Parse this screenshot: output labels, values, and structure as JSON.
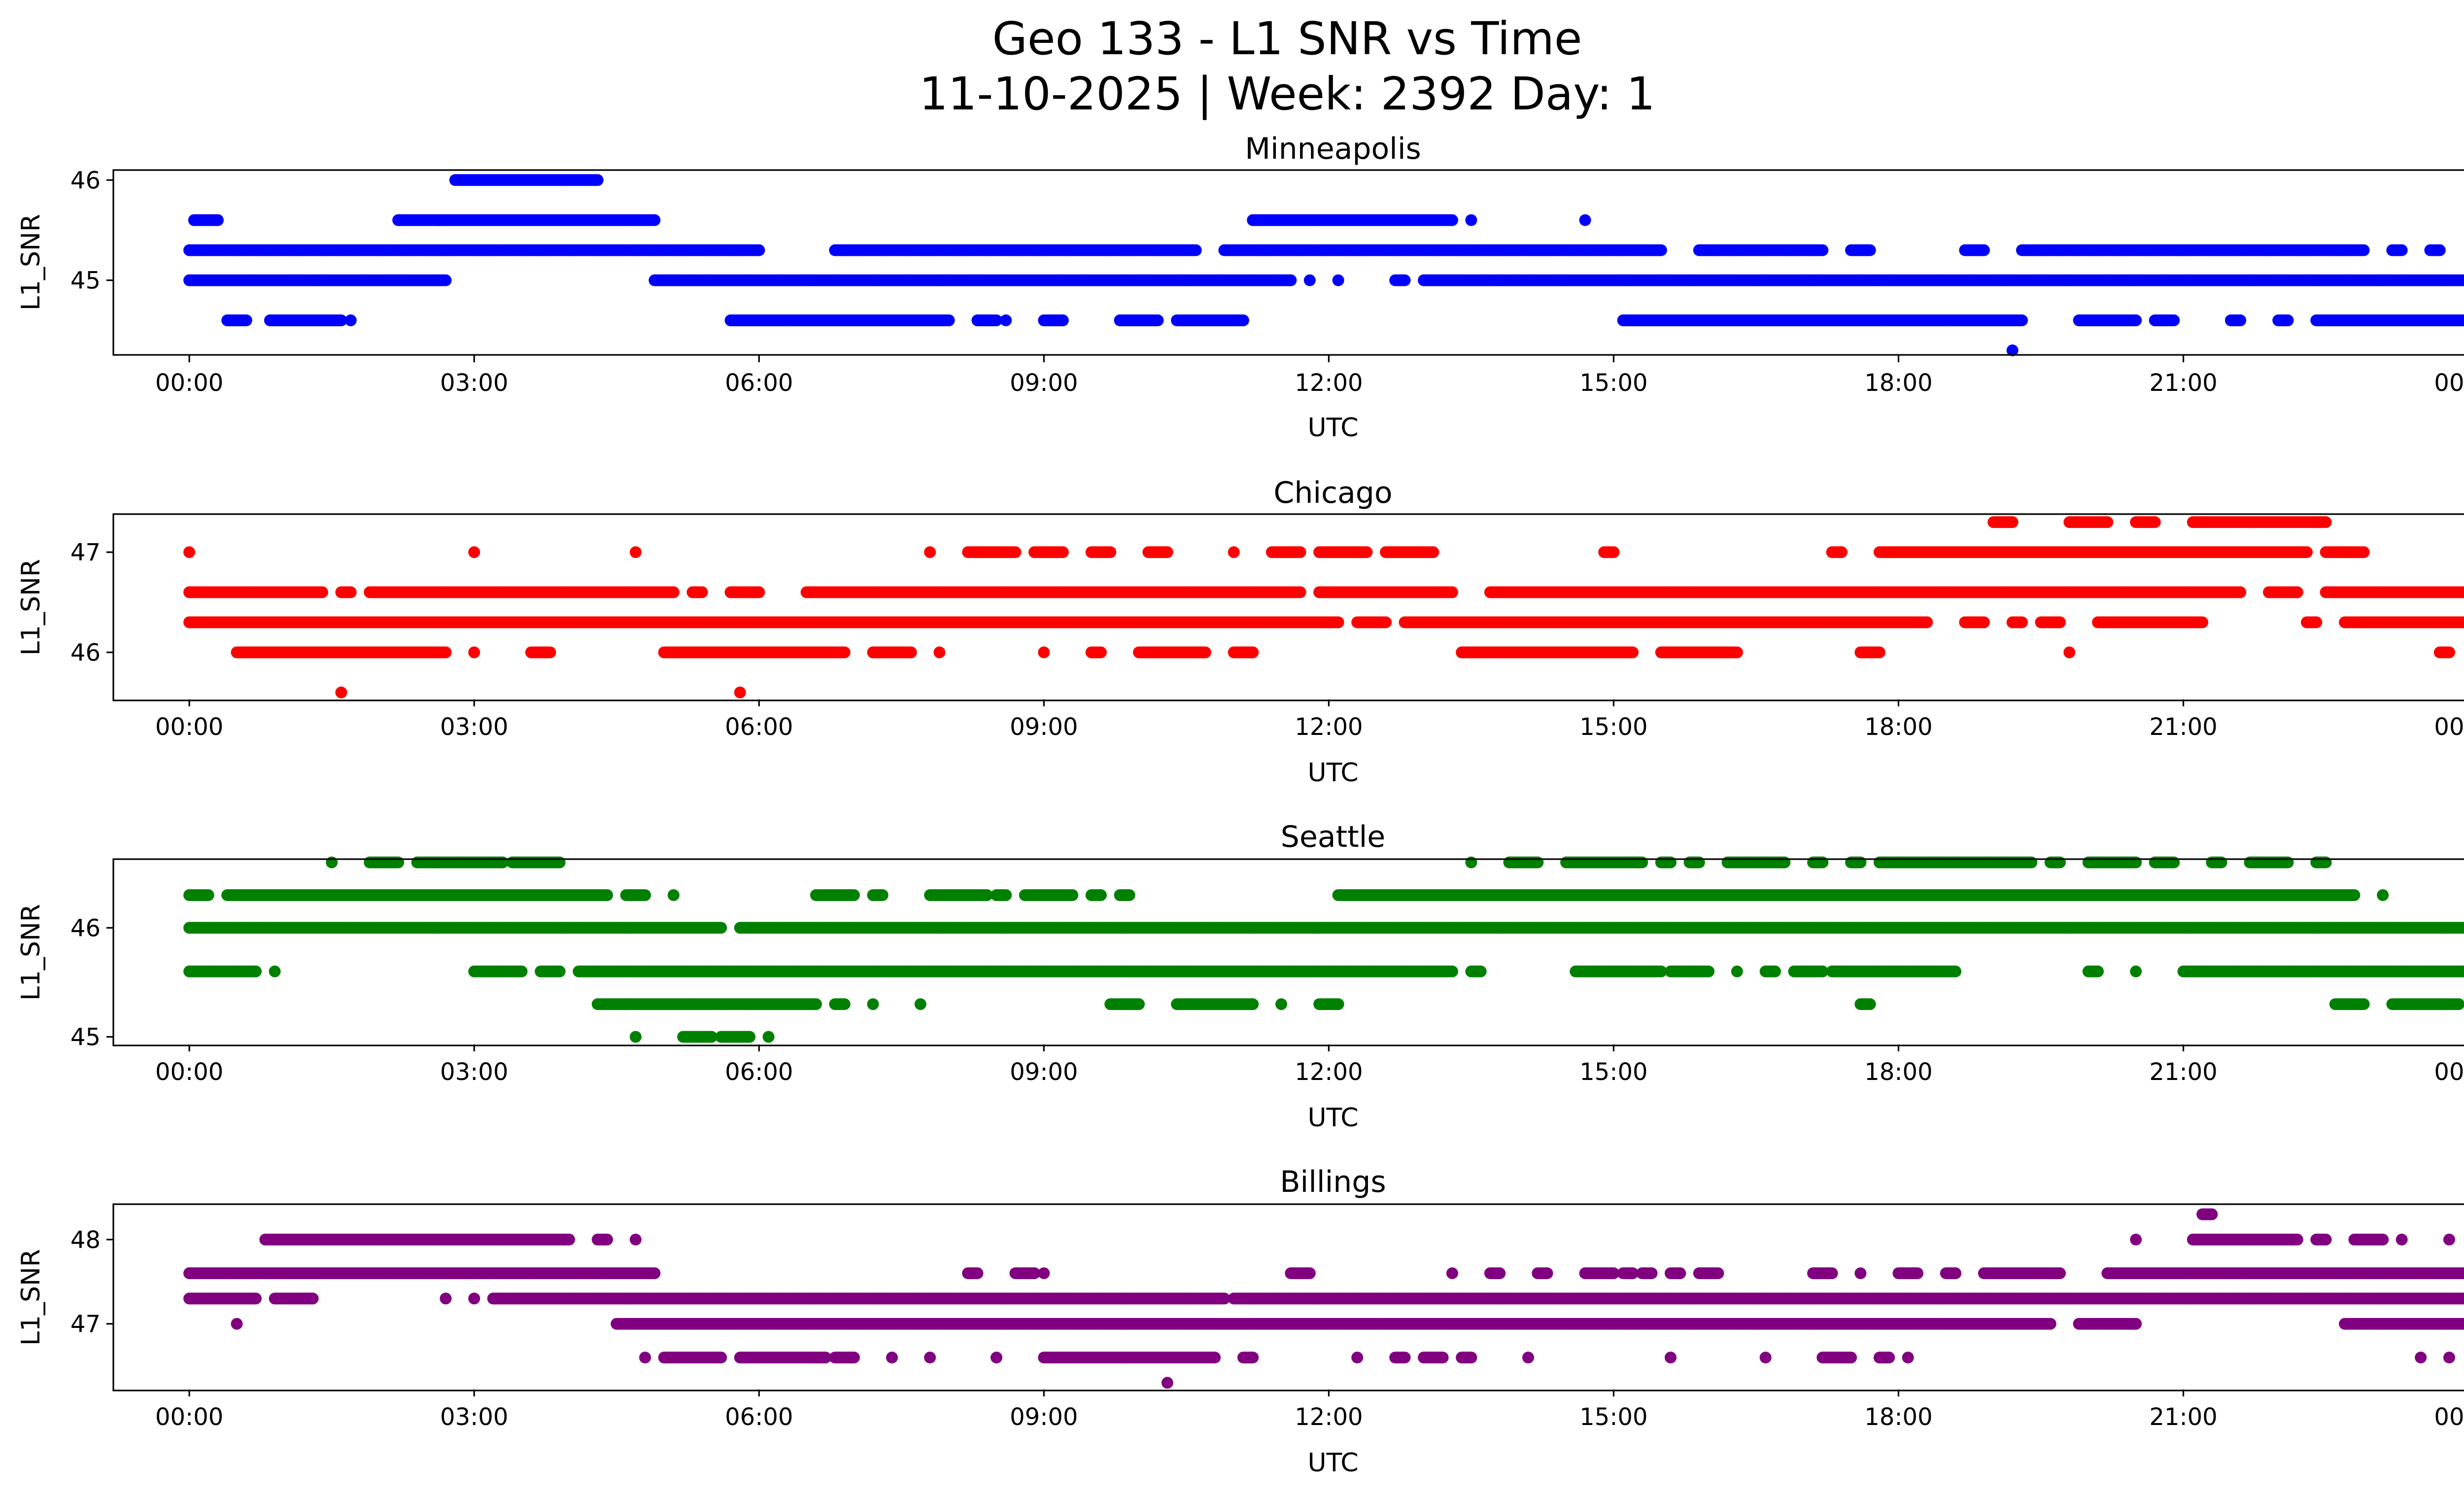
{
  "figure": {
    "title_line1": "Geo 133 - L1 SNR vs Time",
    "title_line2": "11-10-2025 | Week: 2392 Day: 1"
  },
  "chart_data": [
    {
      "type": "scatter",
      "title": "Minneapolis",
      "xlabel": "UTC",
      "ylabel": "L1_SNR",
      "color": "#0000ff",
      "xlim": [
        -0.8,
        24.9
      ],
      "ylim": [
        44.25,
        46.1
      ],
      "xticks": [
        0,
        3,
        6,
        9,
        12,
        15,
        18,
        21,
        24
      ],
      "xtick_labels": [
        "00:00",
        "03:00",
        "06:00",
        "09:00",
        "12:00",
        "15:00",
        "18:00",
        "21:00",
        "00:00"
      ],
      "yticks": [
        45,
        46
      ],
      "ytick_labels": [
        "45",
        "46"
      ],
      "level_runs": [
        {
          "y": 46.0,
          "runs": [
            [
              2.8,
              4.3
            ]
          ]
        },
        {
          "y": 45.6,
          "runs": [
            [
              0.05,
              0.3
            ],
            [
              2.2,
              4.9
            ],
            [
              11.2,
              13.3
            ],
            [
              13.5,
              13.5
            ],
            [
              14.7,
              14.7
            ]
          ]
        },
        {
          "y": 45.3,
          "runs": [
            [
              0.0,
              6.0
            ],
            [
              6.8,
              10.6
            ],
            [
              10.9,
              15.5
            ],
            [
              15.9,
              17.2
            ],
            [
              17.5,
              17.7
            ],
            [
              18.7,
              18.9
            ],
            [
              19.3,
              22.9
            ],
            [
              23.2,
              23.3
            ],
            [
              23.6,
              23.7
            ]
          ]
        },
        {
          "y": 45.0,
          "runs": [
            [
              0.0,
              2.7
            ],
            [
              4.9,
              11.6
            ],
            [
              11.8,
              11.8
            ],
            [
              12.1,
              12.1
            ],
            [
              12.7,
              12.8
            ],
            [
              13.0,
              24.0
            ]
          ]
        },
        {
          "y": 44.6,
          "runs": [
            [
              0.4,
              0.6
            ],
            [
              0.85,
              1.6
            ],
            [
              1.7,
              1.7
            ],
            [
              5.7,
              8.0
            ],
            [
              8.3,
              8.5
            ],
            [
              8.6,
              8.6
            ],
            [
              9.0,
              9.2
            ],
            [
              9.8,
              10.2
            ],
            [
              10.4,
              11.1
            ],
            [
              15.1,
              19.3
            ],
            [
              19.9,
              20.5
            ],
            [
              20.7,
              20.9
            ],
            [
              21.5,
              21.6
            ],
            [
              22.0,
              22.1
            ],
            [
              22.4,
              24.0
            ]
          ]
        },
        {
          "y": 44.3,
          "runs": [
            [
              19.2,
              19.2
            ]
          ]
        }
      ]
    },
    {
      "type": "scatter",
      "title": "Chicago",
      "xlabel": "UTC",
      "ylabel": "L1_SNR",
      "color": "#ff0000",
      "xlim": [
        -0.8,
        24.9
      ],
      "ylim": [
        45.53,
        47.38
      ],
      "xticks": [
        0,
        3,
        6,
        9,
        12,
        15,
        18,
        21,
        24
      ],
      "xtick_labels": [
        "00:00",
        "03:00",
        "06:00",
        "09:00",
        "12:00",
        "15:00",
        "18:00",
        "21:00",
        "00:00"
      ],
      "yticks": [
        46,
        47
      ],
      "ytick_labels": [
        "46",
        "47"
      ],
      "level_runs": [
        {
          "y": 47.3,
          "runs": [
            [
              19.0,
              19.2
            ],
            [
              19.8,
              20.2
            ],
            [
              20.5,
              20.7
            ],
            [
              21.1,
              22.5
            ]
          ]
        },
        {
          "y": 47.0,
          "runs": [
            [
              0.0,
              0.0
            ],
            [
              3.0,
              3.0
            ],
            [
              4.7,
              4.7
            ],
            [
              7.8,
              7.8
            ],
            [
              8.2,
              8.7
            ],
            [
              8.9,
              9.2
            ],
            [
              9.5,
              9.7
            ],
            [
              10.1,
              10.3
            ],
            [
              11.0,
              11.0
            ],
            [
              11.4,
              11.7
            ],
            [
              11.9,
              12.4
            ],
            [
              12.6,
              13.1
            ],
            [
              14.9,
              15.0
            ],
            [
              17.3,
              17.4
            ],
            [
              17.8,
              22.3
            ],
            [
              22.5,
              22.9
            ]
          ]
        },
        {
          "y": 46.6,
          "runs": [
            [
              0.0,
              1.4
            ],
            [
              1.6,
              1.7
            ],
            [
              1.9,
              5.1
            ],
            [
              5.3,
              5.4
            ],
            [
              5.7,
              6.0
            ],
            [
              6.5,
              11.7
            ],
            [
              11.9,
              13.3
            ],
            [
              13.7,
              21.6
            ],
            [
              21.9,
              22.2
            ],
            [
              22.5,
              24.0
            ]
          ]
        },
        {
          "y": 46.3,
          "runs": [
            [
              0.0,
              12.1
            ],
            [
              12.3,
              12.6
            ],
            [
              12.8,
              18.3
            ],
            [
              18.7,
              18.9
            ],
            [
              19.2,
              19.3
            ],
            [
              19.5,
              19.7
            ],
            [
              20.1,
              21.2
            ],
            [
              22.3,
              22.4
            ],
            [
              22.7,
              24.0
            ]
          ]
        },
        {
          "y": 46.0,
          "runs": [
            [
              0.5,
              2.7
            ],
            [
              3.0,
              3.0
            ],
            [
              3.6,
              3.8
            ],
            [
              5.0,
              6.9
            ],
            [
              7.2,
              7.6
            ],
            [
              7.9,
              7.9
            ],
            [
              9.0,
              9.0
            ],
            [
              9.5,
              9.6
            ],
            [
              10.0,
              10.7
            ],
            [
              11.0,
              11.2
            ],
            [
              13.4,
              15.2
            ],
            [
              15.5,
              16.3
            ],
            [
              17.6,
              17.8
            ],
            [
              19.8,
              19.8
            ],
            [
              23.7,
              23.8
            ]
          ]
        },
        {
          "y": 45.6,
          "runs": [
            [
              1.6,
              1.6
            ],
            [
              5.8,
              5.8
            ]
          ]
        }
      ]
    },
    {
      "type": "scatter",
      "title": "Seattle",
      "xlabel": "UTC",
      "ylabel": "L1_SNR",
      "color": "#008000",
      "xlim": [
        -0.8,
        24.9
      ],
      "ylim": [
        44.93,
        46.63
      ],
      "xticks": [
        0,
        3,
        6,
        9,
        12,
        15,
        18,
        21,
        24
      ],
      "xtick_labels": [
        "00:00",
        "03:00",
        "06:00",
        "09:00",
        "12:00",
        "15:00",
        "18:00",
        "21:00",
        "00:00"
      ],
      "yticks": [
        45,
        46
      ],
      "ytick_labels": [
        "45",
        "46"
      ],
      "level_runs": [
        {
          "y": 46.6,
          "runs": [
            [
              1.5,
              1.5
            ],
            [
              1.9,
              2.2
            ],
            [
              2.4,
              3.3
            ],
            [
              3.4,
              3.9
            ],
            [
              13.5,
              13.5
            ],
            [
              13.9,
              14.2
            ],
            [
              14.5,
              15.3
            ],
            [
              15.5,
              15.6
            ],
            [
              15.8,
              15.9
            ],
            [
              16.2,
              16.8
            ],
            [
              17.1,
              17.2
            ],
            [
              17.5,
              17.6
            ],
            [
              17.8,
              19.4
            ],
            [
              19.6,
              19.7
            ],
            [
              20.0,
              20.5
            ],
            [
              20.7,
              20.9
            ],
            [
              21.3,
              21.4
            ],
            [
              21.7,
              22.1
            ],
            [
              22.4,
              22.5
            ]
          ]
        },
        {
          "y": 46.3,
          "runs": [
            [
              0.0,
              0.2
            ],
            [
              0.4,
              4.4
            ],
            [
              4.6,
              4.8
            ],
            [
              5.1,
              5.1
            ],
            [
              6.6,
              7.0
            ],
            [
              7.2,
              7.3
            ],
            [
              7.8,
              8.4
            ],
            [
              8.5,
              8.6
            ],
            [
              8.8,
              9.3
            ],
            [
              9.5,
              9.6
            ],
            [
              9.8,
              9.9
            ],
            [
              12.1,
              22.8
            ],
            [
              23.1,
              23.1
            ]
          ]
        },
        {
          "y": 46.0,
          "runs": [
            [
              0.0,
              5.6
            ],
            [
              5.8,
              24.0
            ]
          ]
        },
        {
          "y": 45.6,
          "runs": [
            [
              0.0,
              0.7
            ],
            [
              0.9,
              0.9
            ],
            [
              3.0,
              3.5
            ],
            [
              3.7,
              3.9
            ],
            [
              4.1,
              13.3
            ],
            [
              13.5,
              13.6
            ],
            [
              14.6,
              15.5
            ],
            [
              15.6,
              16.0
            ],
            [
              16.3,
              16.3
            ],
            [
              16.6,
              16.7
            ],
            [
              16.9,
              17.2
            ],
            [
              17.3,
              18.6
            ],
            [
              20.0,
              20.1
            ],
            [
              20.5,
              20.5
            ],
            [
              21.0,
              24.0
            ]
          ]
        },
        {
          "y": 45.3,
          "runs": [
            [
              4.3,
              6.6
            ],
            [
              6.8,
              6.9
            ],
            [
              7.2,
              7.2
            ],
            [
              7.7,
              7.7
            ],
            [
              9.7,
              10.0
            ],
            [
              10.4,
              11.2
            ],
            [
              11.5,
              11.5
            ],
            [
              11.9,
              12.1
            ],
            [
              17.6,
              17.7
            ],
            [
              22.6,
              22.9
            ],
            [
              23.2,
              23.9
            ]
          ]
        },
        {
          "y": 45.0,
          "runs": [
            [
              4.7,
              4.7
            ],
            [
              5.2,
              5.5
            ],
            [
              5.6,
              5.9
            ],
            [
              6.1,
              6.1
            ]
          ]
        }
      ]
    },
    {
      "type": "scatter",
      "title": "Billings",
      "xlabel": "UTC",
      "ylabel": "L1_SNR",
      "color": "#800080",
      "xlim": [
        -0.8,
        24.9
      ],
      "ylim": [
        46.22,
        48.42
      ],
      "xticks": [
        0,
        3,
        6,
        9,
        12,
        15,
        18,
        21,
        24
      ],
      "xtick_labels": [
        "00:00",
        "03:00",
        "06:00",
        "09:00",
        "12:00",
        "15:00",
        "18:00",
        "21:00",
        "00:00"
      ],
      "yticks": [
        47,
        48
      ],
      "ytick_labels": [
        "47",
        "48"
      ],
      "level_runs": [
        {
          "y": 48.3,
          "runs": [
            [
              21.2,
              21.3
            ]
          ]
        },
        {
          "y": 48.0,
          "runs": [
            [
              0.8,
              4.0
            ],
            [
              4.3,
              4.4
            ],
            [
              4.7,
              4.7
            ],
            [
              20.5,
              20.5
            ],
            [
              21.1,
              22.2
            ],
            [
              22.4,
              22.5
            ],
            [
              22.8,
              23.1
            ],
            [
              23.3,
              23.3
            ],
            [
              23.8,
              23.8
            ]
          ]
        },
        {
          "y": 47.6,
          "runs": [
            [
              0.0,
              4.9
            ],
            [
              8.2,
              8.3
            ],
            [
              8.7,
              8.9
            ],
            [
              9.0,
              9.0
            ],
            [
              11.6,
              11.8
            ],
            [
              13.3,
              13.3
            ],
            [
              13.7,
              13.8
            ],
            [
              14.2,
              14.3
            ],
            [
              14.7,
              15.0
            ],
            [
              15.1,
              15.2
            ],
            [
              15.3,
              15.4
            ],
            [
              15.6,
              15.7
            ],
            [
              15.9,
              16.1
            ],
            [
              17.1,
              17.3
            ],
            [
              17.6,
              17.6
            ],
            [
              18.0,
              18.2
            ],
            [
              18.5,
              18.6
            ],
            [
              18.9,
              19.7
            ],
            [
              20.2,
              24.0
            ]
          ]
        },
        {
          "y": 47.3,
          "runs": [
            [
              0.0,
              0.7
            ],
            [
              0.9,
              1.3
            ],
            [
              2.7,
              2.7
            ],
            [
              3.0,
              3.0
            ],
            [
              3.2,
              10.9
            ],
            [
              11.0,
              24.0
            ]
          ]
        },
        {
          "y": 47.0,
          "runs": [
            [
              0.5,
              0.5
            ],
            [
              4.5,
              19.6
            ],
            [
              19.9,
              20.5
            ],
            [
              22.7,
              24.0
            ]
          ]
        },
        {
          "y": 46.6,
          "runs": [
            [
              4.8,
              4.8
            ],
            [
              5.0,
              5.6
            ],
            [
              5.8,
              6.7
            ],
            [
              6.8,
              7.0
            ],
            [
              7.4,
              7.4
            ],
            [
              7.8,
              7.8
            ],
            [
              8.5,
              8.5
            ],
            [
              9.0,
              10.8
            ],
            [
              11.1,
              11.2
            ],
            [
              12.3,
              12.3
            ],
            [
              12.7,
              12.8
            ],
            [
              13.0,
              13.2
            ],
            [
              13.4,
              13.5
            ],
            [
              14.1,
              14.1
            ],
            [
              15.6,
              15.6
            ],
            [
              16.6,
              16.6
            ],
            [
              17.2,
              17.5
            ],
            [
              17.8,
              17.9
            ],
            [
              18.1,
              18.1
            ],
            [
              23.5,
              23.5
            ],
            [
              23.8,
              23.8
            ]
          ]
        },
        {
          "y": 46.3,
          "runs": [
            [
              10.3,
              10.3
            ]
          ]
        }
      ]
    }
  ]
}
